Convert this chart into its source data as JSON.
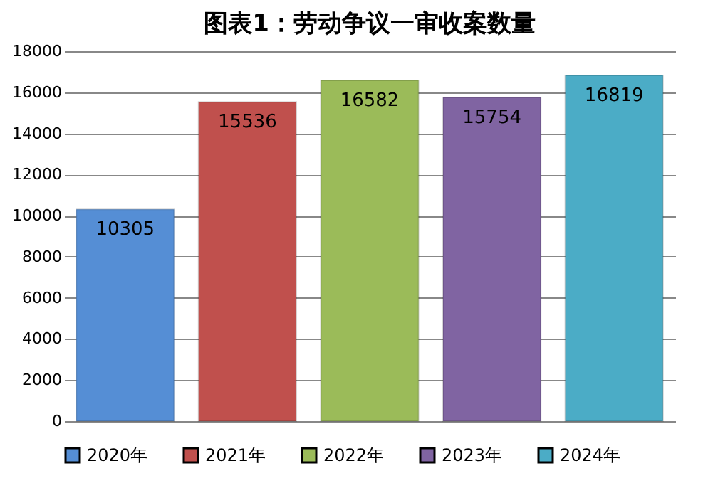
{
  "chart_data": {
    "type": "bar",
    "title": "图表1：劳动争议一审收案数量",
    "categories": [
      null
    ],
    "series": [
      {
        "name": "2020年",
        "color": "#558ed5",
        "values": [
          10305
        ]
      },
      {
        "name": "2021年",
        "color": "#c0504d",
        "values": [
          15536
        ]
      },
      {
        "name": "2022年",
        "color": "#9bbb59",
        "values": [
          16582
        ]
      },
      {
        "name": "2023年",
        "color": "#8064a2",
        "values": [
          15754
        ]
      },
      {
        "name": "2024年",
        "color": "#4bacc6",
        "values": [
          16819
        ]
      }
    ],
    "ylim": [
      0,
      18000
    ],
    "yticks": [
      0,
      2000,
      4000,
      6000,
      8000,
      10000,
      12000,
      14000,
      16000,
      18000
    ],
    "grid": "y",
    "legend": "bottom",
    "data_labels": true
  }
}
